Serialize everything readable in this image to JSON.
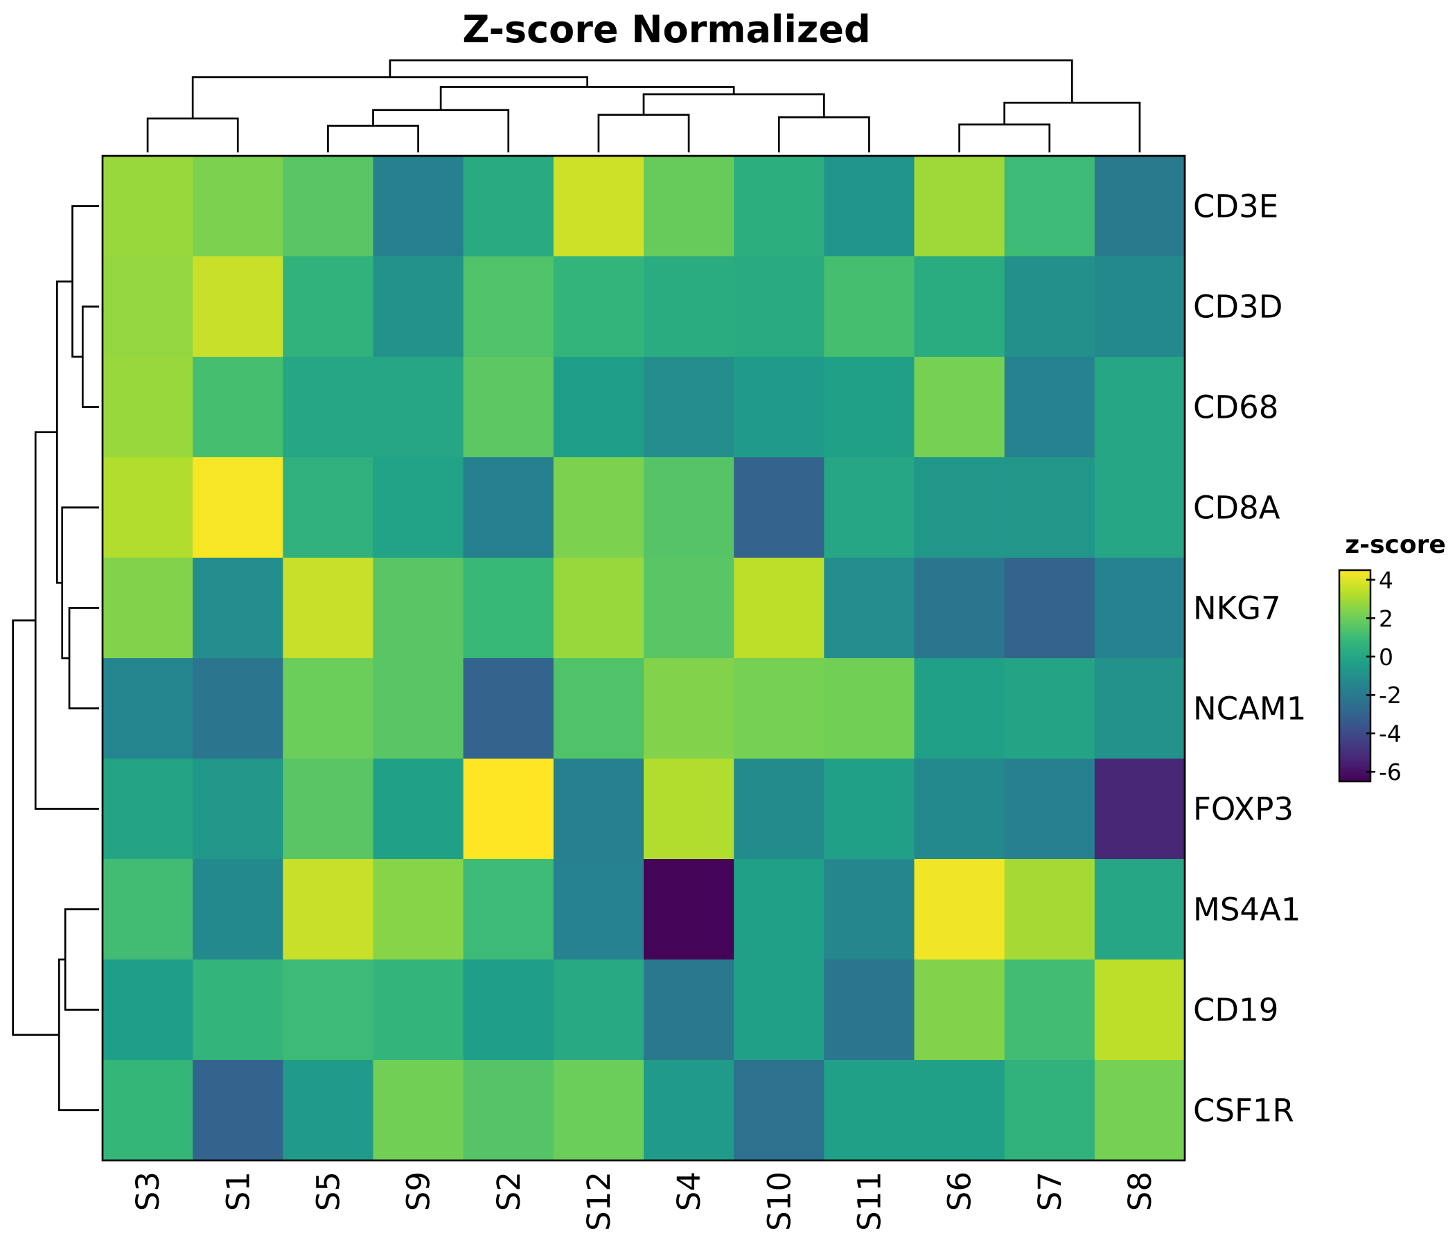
{
  "chart_data": {
    "type": "heatmap",
    "title": "Z-score Normalized",
    "rows": [
      "CD3E",
      "CD3D",
      "CD68",
      "CD8A",
      "NKG7",
      "NCAM1",
      "FOXP3",
      "MS4A1",
      "CD19",
      "CSF1R"
    ],
    "columns": [
      "S3",
      "S1",
      "S5",
      "S9",
      "S2",
      "S12",
      "S4",
      "S10",
      "S11",
      "S6",
      "S7",
      "S8"
    ],
    "values": [
      [
        2.8,
        2.3,
        1.6,
        -1.7,
        0.2,
        3.7,
        1.9,
        0.4,
        -0.8,
        2.9,
        1.0,
        -2.0
      ],
      [
        2.7,
        3.6,
        0.6,
        -0.9,
        1.4,
        0.7,
        0.3,
        0.2,
        1.2,
        0.3,
        -1.0,
        -1.3
      ],
      [
        2.8,
        1.2,
        0.0,
        0.0,
        1.7,
        -0.4,
        -1.1,
        -0.5,
        -0.3,
        2.2,
        -1.6,
        0.0
      ],
      [
        3.2,
        4.4,
        0.5,
        -0.2,
        -1.7,
        2.3,
        1.5,
        -3.0,
        0.0,
        -0.7,
        -0.7,
        0.0
      ],
      [
        2.4,
        -1.1,
        3.6,
        1.6,
        0.9,
        2.8,
        1.6,
        3.4,
        -1.1,
        -2.2,
        -3.0,
        -1.6
      ],
      [
        -1.5,
        -2.2,
        2.0,
        1.6,
        -3.0,
        1.4,
        2.4,
        2.2,
        2.1,
        -0.3,
        -0.1,
        -0.9
      ],
      [
        -0.1,
        -0.7,
        1.6,
        -0.3,
        4.5,
        -1.7,
        3.2,
        -1.2,
        -0.3,
        -1.3,
        -1.7,
        -5.3
      ],
      [
        1.1,
        -1.3,
        3.6,
        2.5,
        1.0,
        -1.6,
        -6.4,
        -0.3,
        -1.4,
        4.3,
        3.0,
        0.0
      ],
      [
        -0.4,
        0.7,
        1.0,
        0.7,
        -0.4,
        0.1,
        -2.1,
        -0.3,
        -2.2,
        2.4,
        1.1,
        3.4
      ],
      [
        0.8,
        -3.0,
        -0.5,
        2.1,
        1.5,
        2.0,
        -0.5,
        -2.4,
        -0.3,
        -0.3,
        0.6,
        2.2
      ]
    ],
    "colorbar": {
      "title": "z-score",
      "range": [
        -6.5,
        4.5
      ],
      "ticks": [
        4,
        2,
        0,
        -2,
        -4,
        -6
      ],
      "colormap": "viridis"
    },
    "row_dendrogram": {
      "position": "left",
      "merges": [
        [
          1,
          2,
          0.16
        ],
        [
          0,
          -1,
          0.26
        ],
        [
          4,
          5,
          0.29
        ],
        [
          -3,
          3,
          0.36
        ],
        [
          7,
          8,
          0.33
        ],
        [
          9,
          -5,
          0.39
        ],
        [
          -2,
          -4,
          0.41
        ],
        [
          6,
          -7,
          0.62
        ],
        [
          -6,
          -8,
          0.84
        ]
      ]
    },
    "col_dendrogram": {
      "position": "top",
      "merges": [
        [
          0,
          1,
          0.28
        ],
        [
          2,
          3,
          0.22
        ],
        [
          5,
          6,
          0.31
        ],
        [
          7,
          8,
          0.29
        ],
        [
          9,
          10,
          0.23
        ],
        [
          -2,
          4,
          0.35
        ],
        [
          -4,
          -3,
          0.48
        ],
        [
          -5,
          11,
          0.41
        ],
        [
          -6,
          -7,
          0.54
        ],
        [
          -1,
          -9,
          0.62
        ],
        [
          -10,
          -8,
          0.76
        ]
      ]
    }
  }
}
